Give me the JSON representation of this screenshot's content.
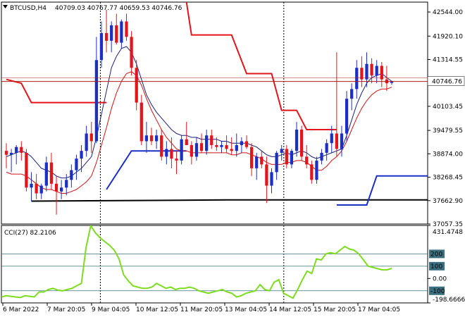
{
  "header": {
    "symbol": "BTCUSD,H4",
    "ohlc": "40709.03 40767.77 40659.53 40746.76"
  },
  "price_axis": {
    "labels": [
      "42544.00",
      "41920.10",
      "41314.55",
      "40746.76",
      "40103.45",
      "39479.55",
      "38874.00",
      "38268.45",
      "37662.90",
      "37057.35"
    ],
    "values": [
      42544.0,
      41920.1,
      41314.55,
      40746.76,
      40103.45,
      39479.55,
      38874.0,
      38268.45,
      37662.9,
      37057.35
    ]
  },
  "cci_panel": {
    "label": "CCI(27) 82.2106",
    "axis_labels": [
      "431.4748",
      "200",
      "100",
      "0.00",
      "-100",
      "-198.6666"
    ],
    "axis_values": [
      431.4748,
      200,
      100,
      0,
      -100,
      -198.6666
    ]
  },
  "time_axis": {
    "labels": [
      "6 Mar 2022",
      "7 Mar 20:05",
      "9 Mar 04:05",
      "10 Mar 12:05",
      "11 Mar 20:05",
      "13 Mar 04:05",
      "14 Mar 12:05",
      "15 Mar 20:05",
      "17 Mar 04:05"
    ]
  },
  "colors": {
    "bull": "#1c2fc4",
    "bear": "#e3141b",
    "ma_fast": "#1a1f7a",
    "ma_slow": "#d11414",
    "cci": "#7ddc1f",
    "price_tag_bg": "#ffffff"
  },
  "chart_data": {
    "type": "candlestick",
    "title": "BTCUSD,H4",
    "ylim": [
      37057.35,
      42800
    ],
    "candles": [
      {
        "o": 38950,
        "h": 39150,
        "l": 38500,
        "c": 38850
      },
      {
        "o": 38850,
        "h": 39000,
        "l": 38400,
        "c": 38900
      },
      {
        "o": 38900,
        "h": 39100,
        "l": 38600,
        "c": 39050
      },
      {
        "o": 39050,
        "h": 39200,
        "l": 38700,
        "c": 38900
      },
      {
        "o": 38900,
        "h": 39000,
        "l": 37900,
        "c": 38000
      },
      {
        "o": 38000,
        "h": 38400,
        "l": 37650,
        "c": 38100
      },
      {
        "o": 38100,
        "h": 38350,
        "l": 37700,
        "c": 37850
      },
      {
        "o": 37850,
        "h": 38100,
        "l": 37700,
        "c": 38050
      },
      {
        "o": 38050,
        "h": 38800,
        "l": 37900,
        "c": 38650
      },
      {
        "o": 38650,
        "h": 38900,
        "l": 37950,
        "c": 38100
      },
      {
        "o": 38100,
        "h": 38300,
        "l": 37300,
        "c": 37900
      },
      {
        "o": 37900,
        "h": 38200,
        "l": 37700,
        "c": 38000
      },
      {
        "o": 38000,
        "h": 38350,
        "l": 37800,
        "c": 38200
      },
      {
        "o": 38200,
        "h": 38600,
        "l": 38000,
        "c": 38450
      },
      {
        "o": 38450,
        "h": 38850,
        "l": 38200,
        "c": 38750
      },
      {
        "o": 38750,
        "h": 39100,
        "l": 38400,
        "c": 38950
      },
      {
        "o": 38950,
        "h": 39600,
        "l": 38800,
        "c": 39400
      },
      {
        "o": 39400,
        "h": 39700,
        "l": 38900,
        "c": 39200
      },
      {
        "o": 39200,
        "h": 41900,
        "l": 39150,
        "c": 41300
      },
      {
        "o": 41300,
        "h": 42300,
        "l": 41100,
        "c": 42000
      },
      {
        "o": 42000,
        "h": 42600,
        "l": 41500,
        "c": 41800
      },
      {
        "o": 41800,
        "h": 42300,
        "l": 41500,
        "c": 42200
      },
      {
        "o": 42200,
        "h": 42500,
        "l": 41700,
        "c": 41750
      },
      {
        "o": 41750,
        "h": 42350,
        "l": 41600,
        "c": 42300
      },
      {
        "o": 42300,
        "h": 42500,
        "l": 41800,
        "c": 41900
      },
      {
        "o": 41900,
        "h": 42050,
        "l": 40900,
        "c": 41100
      },
      {
        "o": 41100,
        "h": 41300,
        "l": 40000,
        "c": 40200
      },
      {
        "o": 40200,
        "h": 40400,
        "l": 39100,
        "c": 39200
      },
      {
        "o": 39200,
        "h": 39700,
        "l": 38900,
        "c": 39350
      },
      {
        "o": 39350,
        "h": 39550,
        "l": 39100,
        "c": 39200
      },
      {
        "o": 39200,
        "h": 39500,
        "l": 39000,
        "c": 39350
      },
      {
        "o": 39350,
        "h": 39500,
        "l": 38700,
        "c": 38800
      },
      {
        "o": 38800,
        "h": 39200,
        "l": 38600,
        "c": 39000
      },
      {
        "o": 39000,
        "h": 39300,
        "l": 38500,
        "c": 38750
      },
      {
        "o": 38750,
        "h": 38950,
        "l": 38350,
        "c": 38700
      },
      {
        "o": 38700,
        "h": 39350,
        "l": 38600,
        "c": 39250
      },
      {
        "o": 39250,
        "h": 39700,
        "l": 39100,
        "c": 39100
      },
      {
        "o": 39100,
        "h": 39200,
        "l": 38600,
        "c": 38800
      },
      {
        "o": 38800,
        "h": 39300,
        "l": 38700,
        "c": 39150
      },
      {
        "o": 39150,
        "h": 39400,
        "l": 38900,
        "c": 38950
      },
      {
        "o": 38950,
        "h": 39500,
        "l": 38850,
        "c": 39350
      },
      {
        "o": 39350,
        "h": 39500,
        "l": 39000,
        "c": 39100
      },
      {
        "o": 39100,
        "h": 39300,
        "l": 38950,
        "c": 39050
      },
      {
        "o": 39050,
        "h": 39200,
        "l": 38900,
        "c": 39100
      },
      {
        "o": 39100,
        "h": 39350,
        "l": 38900,
        "c": 39000
      },
      {
        "o": 39000,
        "h": 39300,
        "l": 38850,
        "c": 38950
      },
      {
        "o": 38950,
        "h": 39400,
        "l": 38800,
        "c": 39100
      },
      {
        "o": 39100,
        "h": 39300,
        "l": 38900,
        "c": 39200
      },
      {
        "o": 39200,
        "h": 39350,
        "l": 39000,
        "c": 39050
      },
      {
        "o": 39050,
        "h": 39150,
        "l": 38300,
        "c": 38500
      },
      {
        "o": 38500,
        "h": 38900,
        "l": 38200,
        "c": 38800
      },
      {
        "o": 38800,
        "h": 38950,
        "l": 38500,
        "c": 38600
      },
      {
        "o": 38600,
        "h": 38800,
        "l": 37600,
        "c": 38050
      },
      {
        "o": 38050,
        "h": 38500,
        "l": 37850,
        "c": 38400
      },
      {
        "o": 38400,
        "h": 38950,
        "l": 38200,
        "c": 38900
      },
      {
        "o": 38900,
        "h": 39100,
        "l": 38700,
        "c": 39000
      },
      {
        "o": 39000,
        "h": 39100,
        "l": 38500,
        "c": 38600
      },
      {
        "o": 38600,
        "h": 39000,
        "l": 38500,
        "c": 38950
      },
      {
        "o": 38950,
        "h": 39700,
        "l": 38800,
        "c": 39500
      },
      {
        "o": 39500,
        "h": 39600,
        "l": 38700,
        "c": 38800
      },
      {
        "o": 38800,
        "h": 39100,
        "l": 38500,
        "c": 38600
      },
      {
        "o": 38600,
        "h": 38700,
        "l": 38100,
        "c": 38200
      },
      {
        "o": 38200,
        "h": 38800,
        "l": 38100,
        "c": 38700
      },
      {
        "o": 38700,
        "h": 39000,
        "l": 38600,
        "c": 38900
      },
      {
        "o": 38900,
        "h": 39250,
        "l": 38700,
        "c": 39150
      },
      {
        "o": 39150,
        "h": 39600,
        "l": 38900,
        "c": 39400
      },
      {
        "o": 39400,
        "h": 41500,
        "l": 38800,
        "c": 39000
      },
      {
        "o": 39000,
        "h": 39600,
        "l": 38800,
        "c": 39400
      },
      {
        "o": 39400,
        "h": 40500,
        "l": 39200,
        "c": 40300
      },
      {
        "o": 40300,
        "h": 40700,
        "l": 40000,
        "c": 40550
      },
      {
        "o": 40550,
        "h": 41300,
        "l": 40300,
        "c": 41100
      },
      {
        "o": 41100,
        "h": 41400,
        "l": 40600,
        "c": 40800
      },
      {
        "o": 40800,
        "h": 41500,
        "l": 40600,
        "c": 41200
      },
      {
        "o": 41200,
        "h": 41350,
        "l": 40700,
        "c": 40900
      },
      {
        "o": 40900,
        "h": 41300,
        "l": 40700,
        "c": 41150
      },
      {
        "o": 41150,
        "h": 41250,
        "l": 40600,
        "c": 40800
      },
      {
        "o": 40800,
        "h": 41150,
        "l": 40500,
        "c": 40700
      },
      {
        "o": 40709.03,
        "h": 40767.77,
        "l": 40659.53,
        "c": 40746.76
      }
    ],
    "ma_fast": [
      38800,
      38850,
      38900,
      38950,
      38900,
      38800,
      38650,
      38500,
      38450,
      38400,
      38300,
      38250,
      38250,
      38300,
      38400,
      38500,
      38650,
      38800,
      39300,
      39900,
      40500,
      41100,
      41400,
      41600,
      41650,
      41500,
      41200,
      40800,
      40400,
      40150,
      39950,
      39800,
      39650,
      39500,
      39400,
      39350,
      39350,
      39300,
      39300,
      39250,
      39250,
      39250,
      39250,
      39200,
      39200,
      39150,
      39150,
      39150,
      39150,
      39100,
      39050,
      38950,
      38850,
      38800,
      38800,
      38850,
      38900,
      38850,
      38900,
      38950,
      38900,
      38800,
      38750,
      38800,
      38850,
      38900,
      38950,
      39000,
      39350,
      39750,
      40150,
      40450,
      40700,
      40850,
      40900,
      40950,
      40850,
      40750
    ],
    "ma_slow": [
      38400,
      38350,
      38350,
      38350,
      38300,
      38200,
      38100,
      38000,
      37950,
      37950,
      37900,
      37850,
      37850,
      37900,
      37950,
      38050,
      38150,
      38300,
      38650,
      39100,
      39550,
      40050,
      40450,
      40750,
      40950,
      41000,
      40900,
      40650,
      40300,
      40000,
      39750,
      39500,
      39300,
      39150,
      39000,
      38950,
      38950,
      38900,
      38900,
      38900,
      38900,
      38900,
      38900,
      38900,
      38900,
      38850,
      38850,
      38900,
      38900,
      38850,
      38800,
      38750,
      38650,
      38600,
      38600,
      38600,
      38650,
      38650,
      38700,
      38700,
      38650,
      38550,
      38450,
      38450,
      38550,
      38700,
      38800,
      38950,
      39200,
      39500,
      39800,
      40050,
      40250,
      40400,
      40500,
      40550,
      40550,
      40600
    ],
    "stop_lines": [
      {
        "color": "red",
        "points": [
          [
            0,
            40800
          ],
          [
            3,
            40700
          ],
          [
            3,
            40700
          ],
          [
            5,
            40200
          ],
          [
            20,
            40200
          ]
        ]
      },
      {
        "color": "black",
        "points": [
          [
            5,
            37650
          ],
          [
            44,
            37680
          ],
          [
            85,
            37680
          ]
        ]
      },
      {
        "color": "blue",
        "points": [
          [
            20,
            37950
          ],
          [
            25,
            38950
          ],
          [
            36,
            38950
          ]
        ]
      },
      {
        "color": "red",
        "points": [
          [
            36,
            42800
          ],
          [
            37,
            41950
          ],
          [
            45,
            41950
          ],
          [
            48,
            40950
          ],
          [
            53,
            40950
          ],
          [
            55,
            40000
          ],
          [
            58,
            40000
          ],
          [
            60,
            39500
          ],
          [
            66,
            39500
          ]
        ]
      },
      {
        "color": "blue",
        "points": [
          [
            66,
            37550
          ],
          [
            72,
            37550
          ],
          [
            74,
            38300
          ],
          [
            85,
            38300
          ]
        ]
      }
    ],
    "cci": [
      -150,
      -140,
      -145,
      -150,
      -155,
      -140,
      -145,
      -150,
      -110,
      -110,
      -90,
      -80,
      -95,
      -100,
      -90,
      -80,
      -60,
      -40,
      250,
      430,
      370,
      330,
      300,
      270,
      230,
      160,
      30,
      -20,
      -60,
      -70,
      -80,
      -80,
      -70,
      -40,
      -60,
      -80,
      -70,
      -90,
      -80,
      -80,
      -70,
      -80,
      -100,
      -110,
      -120,
      -110,
      -100,
      -90,
      -110,
      -120,
      -150,
      -140,
      -120,
      -110,
      -100,
      -50,
      -90,
      -100,
      -30,
      -10,
      -120,
      -140,
      -160,
      -90,
      -10,
      60,
      40,
      160,
      150,
      200,
      210,
      200,
      230,
      260,
      240,
      230,
      200,
      150,
      100,
      90,
      80,
      70,
      70,
      82.21
    ],
    "current_price": 40746.76
  }
}
